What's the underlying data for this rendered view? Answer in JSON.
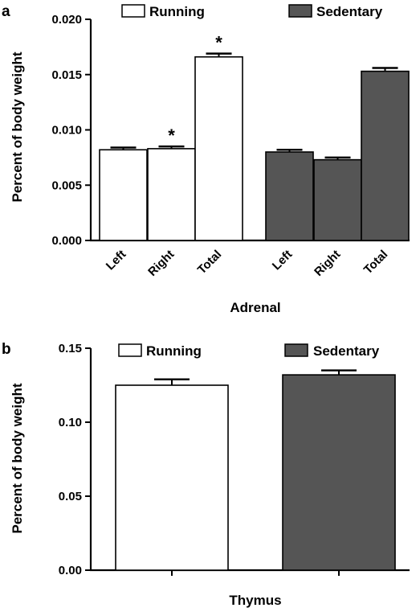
{
  "legend": {
    "running": "Running",
    "sedentary": "Sedentary"
  },
  "colors": {
    "running": "#ffffff",
    "sedentary": "#555555",
    "axis": "#000000"
  },
  "chart_data": [
    {
      "type": "bar",
      "panel_label": "a",
      "ylabel": "Percent of body weight",
      "xlabel": "Adrenal",
      "ylim": [
        0,
        0.02
      ],
      "yticks": [
        "0.000",
        "0.005",
        "0.010",
        "0.015",
        "0.020"
      ],
      "categories": [
        "Left",
        "Right",
        "Total",
        "Left",
        "Right",
        "Total"
      ],
      "groups": [
        "running",
        "running",
        "running",
        "sedentary",
        "sedentary",
        "sedentary"
      ],
      "values": [
        0.0082,
        0.0083,
        0.0166,
        0.008,
        0.0073,
        0.0153
      ],
      "errors": [
        0.0002,
        0.0002,
        0.0003,
        0.0002,
        0.0002,
        0.0003
      ],
      "significance": [
        "",
        "*",
        "*",
        "",
        "",
        ""
      ],
      "legend": "top"
    },
    {
      "type": "bar",
      "panel_label": "b",
      "ylabel": "Percent of body weight",
      "xlabel": "Thymus",
      "ylim": [
        0,
        0.15
      ],
      "yticks": [
        "0.00",
        "0.05",
        "0.10",
        "0.15"
      ],
      "categories": [
        "",
        ""
      ],
      "groups": [
        "running",
        "sedentary"
      ],
      "values": [
        0.125,
        0.132
      ],
      "errors": [
        0.004,
        0.003
      ],
      "significance": [
        "",
        ""
      ],
      "legend": "top"
    }
  ]
}
